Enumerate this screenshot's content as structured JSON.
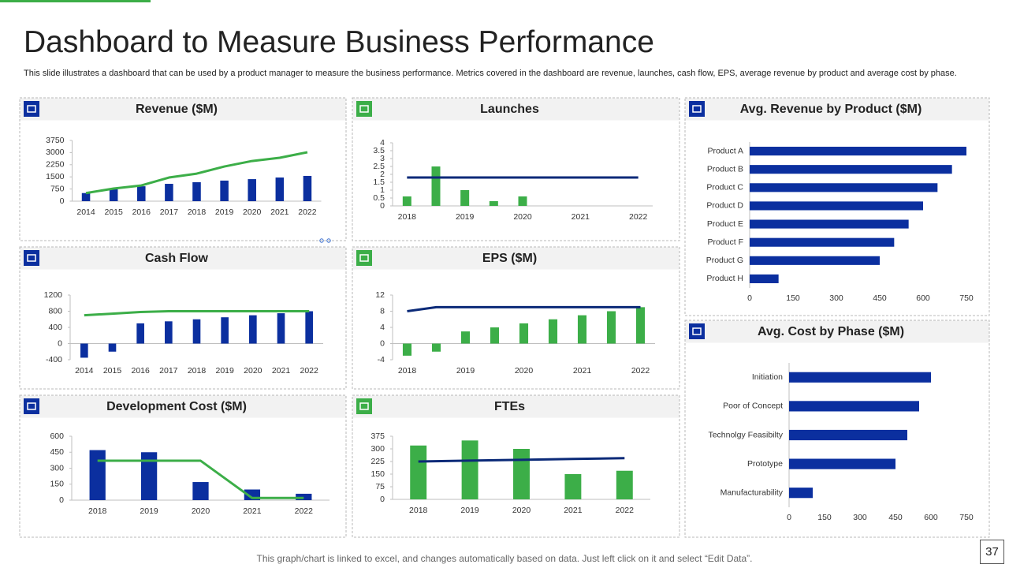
{
  "title": "Dashboard to Measure Business Performance",
  "description": "This slide illustrates a dashboard that can be used by a product manager to measure the business performance. Metrics covered in the dashboard are revenue, launches, cash flow, EPS, average revenue by product and average cost by phase.",
  "footer": "This graph/chart is linked to excel, and changes automatically based on data. Just left click on it and select “Edit Data”.",
  "page_number": 37,
  "chart_data": [
    {
      "type": "combo",
      "title": "Revenue ($M)",
      "categories": [
        "2014",
        "2015",
        "2016",
        "2017",
        "2018",
        "2019",
        "2020",
        "2021",
        "2022"
      ],
      "series": [
        {
          "kind": "bar",
          "color": "#0b2f9f",
          "values": [
            500,
            730,
            920,
            1070,
            1170,
            1270,
            1360,
            1460,
            1560
          ]
        },
        {
          "kind": "line",
          "color": "#3cae48",
          "values": [
            500,
            780,
            970,
            1460,
            1700,
            2140,
            2480,
            2680,
            3020
          ]
        }
      ],
      "ylim": [
        0,
        3750
      ],
      "yticks": [
        0,
        750,
        1500,
        2250,
        3000,
        3750
      ]
    },
    {
      "type": "combo",
      "title": "Launches",
      "categories": [
        "2018",
        null,
        "2019",
        null,
        "2020",
        null,
        "2021",
        null,
        "2022"
      ],
      "series": [
        {
          "kind": "bar",
          "color": "#3cae48",
          "values": [
            0.6,
            2.5,
            1.0,
            0.3,
            0.6,
            null,
            null,
            null,
            null
          ]
        },
        {
          "kind": "line",
          "color": "#0b2a78",
          "values": [
            1.8,
            1.8,
            1.8,
            1.8,
            1.8,
            1.8,
            1.8,
            1.8,
            1.8
          ]
        }
      ],
      "ylim": [
        0,
        4
      ],
      "yticks": [
        0,
        0.5,
        1,
        1.5,
        2,
        2.5,
        3,
        3.5,
        4
      ]
    },
    {
      "type": "hbar",
      "title": "Avg. Revenue by Product ($M)",
      "categories": [
        "Product A",
        "Product B",
        "Product C",
        "Product D",
        "Product E",
        "Product F",
        "Product G",
        "Product H"
      ],
      "values": [
        750,
        700,
        650,
        600,
        550,
        500,
        450,
        100
      ],
      "color": "#0b2f9f",
      "xlim": [
        0,
        750
      ],
      "xticks": [
        0,
        150,
        300,
        450,
        600,
        750
      ]
    },
    {
      "type": "combo",
      "title": "Cash Flow",
      "categories": [
        "2014",
        "2015",
        "2016",
        "2017",
        "2018",
        "2019",
        "2020",
        "2021",
        "2022"
      ],
      "series": [
        {
          "kind": "bar",
          "color": "#0b2f9f",
          "values": [
            -350,
            -200,
            500,
            550,
            600,
            650,
            700,
            750,
            800
          ]
        },
        {
          "kind": "line",
          "color": "#3cae48",
          "values": [
            700,
            740,
            780,
            800,
            800,
            800,
            800,
            800,
            800
          ]
        }
      ],
      "ylim": [
        -400,
        1200
      ],
      "yticks": [
        -400,
        0,
        400,
        800,
        1200
      ]
    },
    {
      "type": "combo",
      "title": "EPS ($M)",
      "categories": [
        "2018",
        null,
        "2019",
        null,
        "2020",
        null,
        "2021",
        null,
        "2022"
      ],
      "series": [
        {
          "kind": "bar",
          "color": "#3cae48",
          "values": [
            -3,
            -2,
            3,
            4,
            5,
            6,
            7,
            8,
            9
          ]
        },
        {
          "kind": "line",
          "color": "#0b2a78",
          "values": [
            8,
            9,
            9,
            9,
            9,
            9,
            9,
            9,
            9
          ]
        }
      ],
      "ylim": [
        -4,
        12
      ],
      "yticks": [
        -4,
        0,
        4,
        8,
        12
      ]
    },
    {
      "type": "hbar",
      "title": "Avg. Cost by Phase ($M)",
      "categories": [
        "Initiation",
        "Poor of Concept",
        "Technolgy Feasibilty",
        "Prototype",
        "Manufacturability"
      ],
      "values": [
        600,
        550,
        500,
        450,
        100
      ],
      "color": "#0b2f9f",
      "xlim": [
        0,
        750
      ],
      "xticks": [
        0,
        150,
        300,
        450,
        600,
        750
      ]
    },
    {
      "type": "combo",
      "title": "Development Cost ($M)",
      "categories": [
        "2018",
        "2019",
        "2020",
        "2021",
        "2022"
      ],
      "series": [
        {
          "kind": "bar",
          "color": "#0b2f9f",
          "values": [
            470,
            450,
            170,
            100,
            60
          ]
        },
        {
          "kind": "line",
          "color": "#3cae48",
          "values": [
            370,
            370,
            370,
            20,
            20
          ]
        }
      ],
      "ylim": [
        0,
        600
      ],
      "yticks": [
        0,
        150,
        300,
        450,
        600
      ]
    },
    {
      "type": "combo",
      "title": "FTEs",
      "categories": [
        "2018",
        "2019",
        "2020",
        "2021",
        "2022"
      ],
      "series": [
        {
          "kind": "bar",
          "color": "#3cae48",
          "values": [
            320,
            350,
            300,
            150,
            170
          ]
        },
        {
          "kind": "line",
          "color": "#0b2a78",
          "values": [
            225,
            230,
            235,
            240,
            245
          ]
        }
      ],
      "ylim": [
        0,
        375
      ],
      "yticks": [
        0,
        75,
        150,
        225,
        300,
        375
      ]
    }
  ]
}
